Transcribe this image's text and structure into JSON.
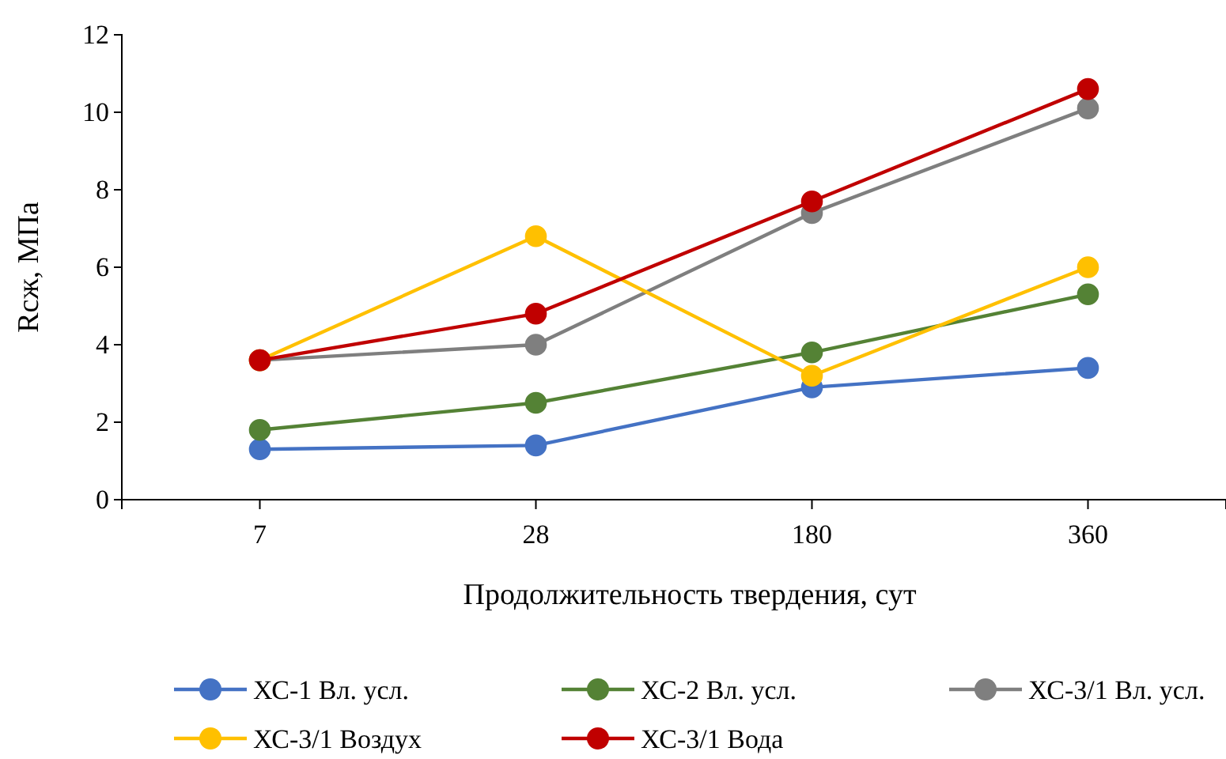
{
  "chart_data": {
    "type": "line",
    "xlabel": "Продолжительность твердения, сут",
    "ylabel": "Rсж, МПа",
    "categories": [
      "7",
      "28",
      "180",
      "360"
    ],
    "ylim": [
      0,
      12
    ],
    "yticks": [
      0,
      2,
      4,
      6,
      8,
      10,
      12
    ],
    "grid": false,
    "legend": "bottom",
    "marker": "circle",
    "line_style": "solid",
    "series": [
      {
        "name": "ХС-1 Вл. усл.",
        "color": "#4472c4",
        "values": [
          1.3,
          1.4,
          2.9,
          3.4
        ]
      },
      {
        "name": "ХС-2 Вл. усл.",
        "color": "#548235",
        "values": [
          1.8,
          2.5,
          3.8,
          5.3
        ]
      },
      {
        "name": "ХС-3/1 Вл. усл.",
        "color": "#7f7f7f",
        "values": [
          3.6,
          4.0,
          7.4,
          10.1
        ]
      },
      {
        "name": "ХС-3/1 Воздух",
        "color": "#ffc000",
        "values": [
          3.6,
          6.8,
          3.2,
          6.0
        ]
      },
      {
        "name": "ХС-3/1 Вода",
        "color": "#c00000",
        "values": [
          3.6,
          4.8,
          7.7,
          10.6
        ]
      }
    ]
  }
}
